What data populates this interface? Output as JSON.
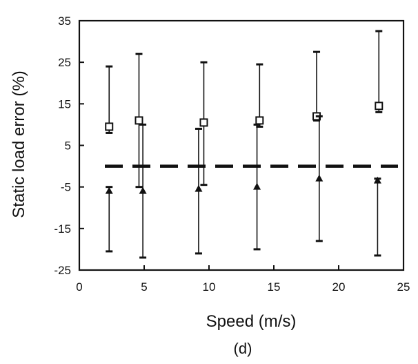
{
  "chart_data": {
    "type": "scatter",
    "title": "",
    "xlabel": "Speed (m/s)",
    "ylabel": "Static load error (%)",
    "caption": "(d)",
    "xlim": [
      0,
      25
    ],
    "ylim": [
      -25,
      35
    ],
    "x_ticks": [
      0,
      5,
      10,
      15,
      20,
      25
    ],
    "y_ticks": [
      35,
      25,
      15,
      5,
      -5,
      -15,
      -25
    ],
    "grid": false,
    "legend": "none",
    "reference_line": {
      "y": 0,
      "style": "dashed"
    },
    "series": [
      {
        "marker": "square",
        "points": [
          {
            "x": 2.3,
            "y": 9.5,
            "upper": 24,
            "lower": 8
          },
          {
            "x": 4.6,
            "y": 11,
            "upper": 27,
            "lower": -5
          },
          {
            "x": 9.6,
            "y": 10.5,
            "upper": 25,
            "lower": -4.5
          },
          {
            "x": 13.9,
            "y": 11,
            "upper": 24.5,
            "lower": 9.5
          },
          {
            "x": 18.3,
            "y": 12,
            "upper": 27.5,
            "lower": 11
          },
          {
            "x": 23.1,
            "y": 14.5,
            "upper": 32.5,
            "lower": 13
          }
        ]
      },
      {
        "marker": "triangle",
        "points": [
          {
            "x": 2.3,
            "y": -6,
            "upper": -5,
            "lower": -20.5
          },
          {
            "x": 4.9,
            "y": -6,
            "upper": 10,
            "lower": -22
          },
          {
            "x": 9.2,
            "y": -5.5,
            "upper": 9,
            "lower": -21
          },
          {
            "x": 13.7,
            "y": -5,
            "upper": 10,
            "lower": -20
          },
          {
            "x": 18.5,
            "y": -3,
            "upper": 12,
            "lower": -18
          },
          {
            "x": 23.0,
            "y": -3.5,
            "upper": -3,
            "lower": -21.5
          }
        ]
      }
    ]
  }
}
